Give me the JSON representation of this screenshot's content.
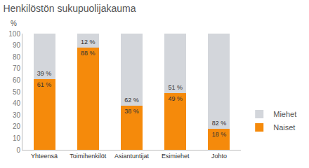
{
  "chart_data": {
    "type": "bar",
    "title": "Henkilöstön sukupuolijakauma",
    "ylabel": "%",
    "categories": [
      "Yhteensä",
      "Toimihenkilöt",
      "Asiantuntijat",
      "Esimiehet",
      "Johto"
    ],
    "series": [
      {
        "name": "Naiset",
        "color": "#f58a0b",
        "values": [
          61,
          88,
          38,
          49,
          18
        ],
        "value_labels": [
          "61 %",
          "88 %",
          "38 %",
          "49 %",
          "18 %"
        ]
      },
      {
        "name": "Miehet",
        "color": "#d3d6db",
        "values": [
          39,
          12,
          62,
          51,
          82
        ],
        "value_labels": [
          "39 %",
          "12 %",
          "62 %",
          "51 %",
          "82 %"
        ]
      }
    ],
    "stacked": true,
    "data_labels": true,
    "legend": "right",
    "grid": false,
    "ylim": [
      0,
      100
    ],
    "yticks": [
      0,
      10,
      20,
      30,
      40,
      50,
      60,
      70,
      80,
      90,
      100
    ]
  }
}
